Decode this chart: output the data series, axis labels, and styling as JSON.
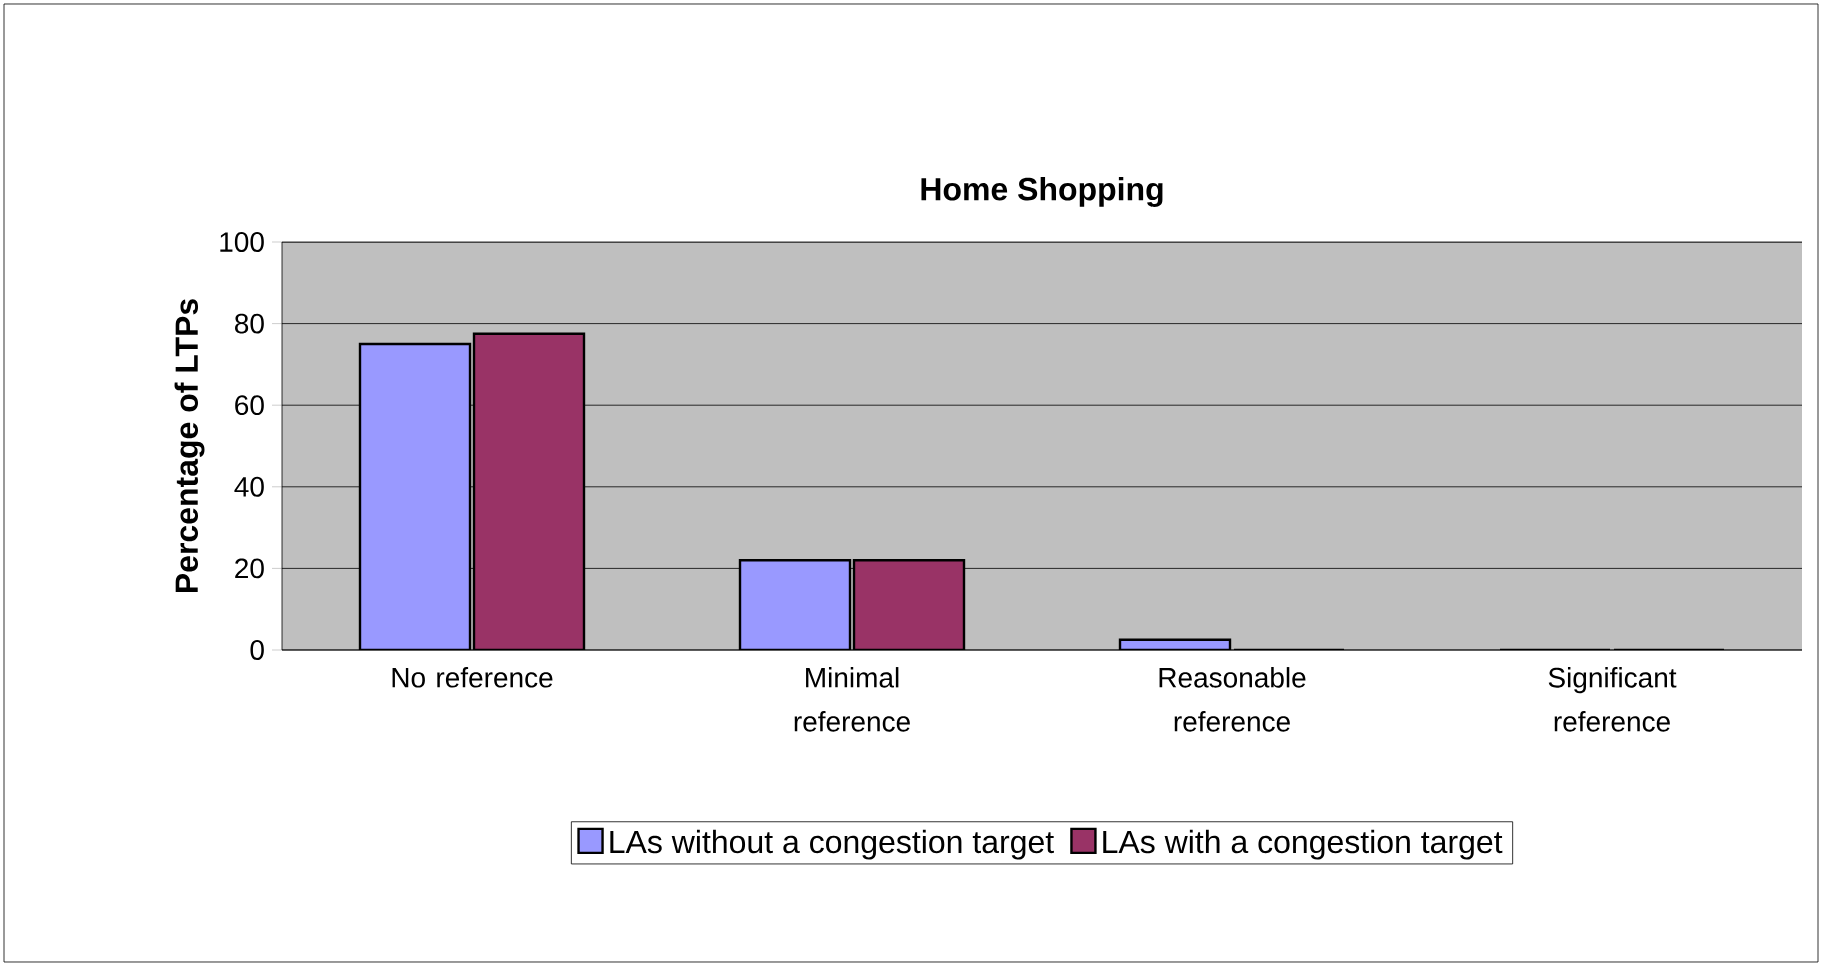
{
  "chart_data": {
    "type": "bar",
    "title": "Home Shopping",
    "ylabel": "Percentage of LTPs",
    "categories": [
      "No reference",
      "Minimal reference",
      "Reasonable reference",
      "Significant reference"
    ],
    "series": [
      {
        "name": "LAs without a congestion target",
        "color": "#9999ff",
        "values": [
          75,
          22,
          2.5,
          0
        ]
      },
      {
        "name": "LAs with a congestion target",
        "color": "#993366",
        "values": [
          77.5,
          22,
          0,
          0
        ]
      }
    ],
    "ylim": [
      0,
      100
    ],
    "yticks": [
      0,
      20,
      40,
      60,
      80,
      100
    ],
    "grid": "y",
    "legend": "bottom"
  }
}
